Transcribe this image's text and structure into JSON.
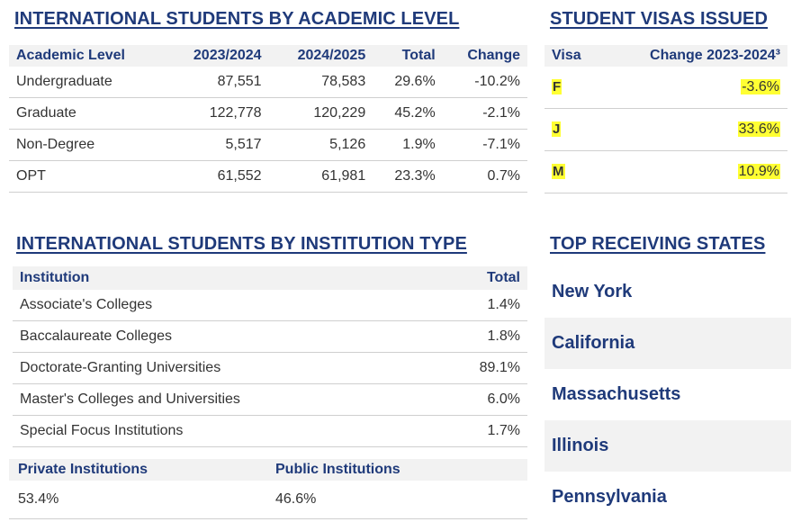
{
  "academic": {
    "title": "INTERNATIONAL STUDENTS BY ACADEMIC LEVEL",
    "headers": [
      "Academic Level",
      "2023/2024",
      "2024/2025",
      "Total",
      "Change"
    ],
    "rows": [
      [
        "Undergraduate",
        "87,551",
        "78,583",
        "29.6%",
        "-10.2%"
      ],
      [
        "Graduate",
        "122,778",
        "120,229",
        "45.2%",
        "-2.1%"
      ],
      [
        "Non-Degree",
        "5,517",
        "5,126",
        "1.9%",
        "-7.1%"
      ],
      [
        "OPT",
        "61,552",
        "61,981",
        "23.3%",
        "0.7%"
      ]
    ]
  },
  "visas": {
    "title": "STUDENT VISAS ISSUED",
    "headers": [
      "Visa",
      "Change 2023-2024³"
    ],
    "rows": [
      [
        "F",
        "-3.6%"
      ],
      [
        "J",
        "33.6%"
      ],
      [
        "M",
        "10.9%"
      ]
    ],
    "highlight_color": "#ffff33"
  },
  "institution": {
    "title": "INTERNATIONAL STUDENTS BY INSTITUTION TYPE",
    "headers": [
      "Institution",
      "Total"
    ],
    "rows": [
      [
        "Associate's Colleges",
        "1.4%"
      ],
      [
        "Baccalaureate Colleges",
        "1.8%"
      ],
      [
        "Doctorate-Granting Universities",
        "89.1%"
      ],
      [
        "Master's Colleges and Universities",
        "6.0%"
      ],
      [
        "Special Focus Institutions",
        "1.7%"
      ]
    ],
    "ownership": {
      "private_label": "Private Institutions",
      "public_label": "Public Institutions",
      "private_value": "53.4%",
      "public_value": "46.6%"
    }
  },
  "states": {
    "title": "TOP RECEIVING STATES",
    "items": [
      "New York",
      "California",
      "Massachusetts",
      "Illinois",
      "Pennsylvania"
    ]
  },
  "colors": {
    "heading": "#1f3a7a",
    "header_bg": "#f2f2f2"
  }
}
